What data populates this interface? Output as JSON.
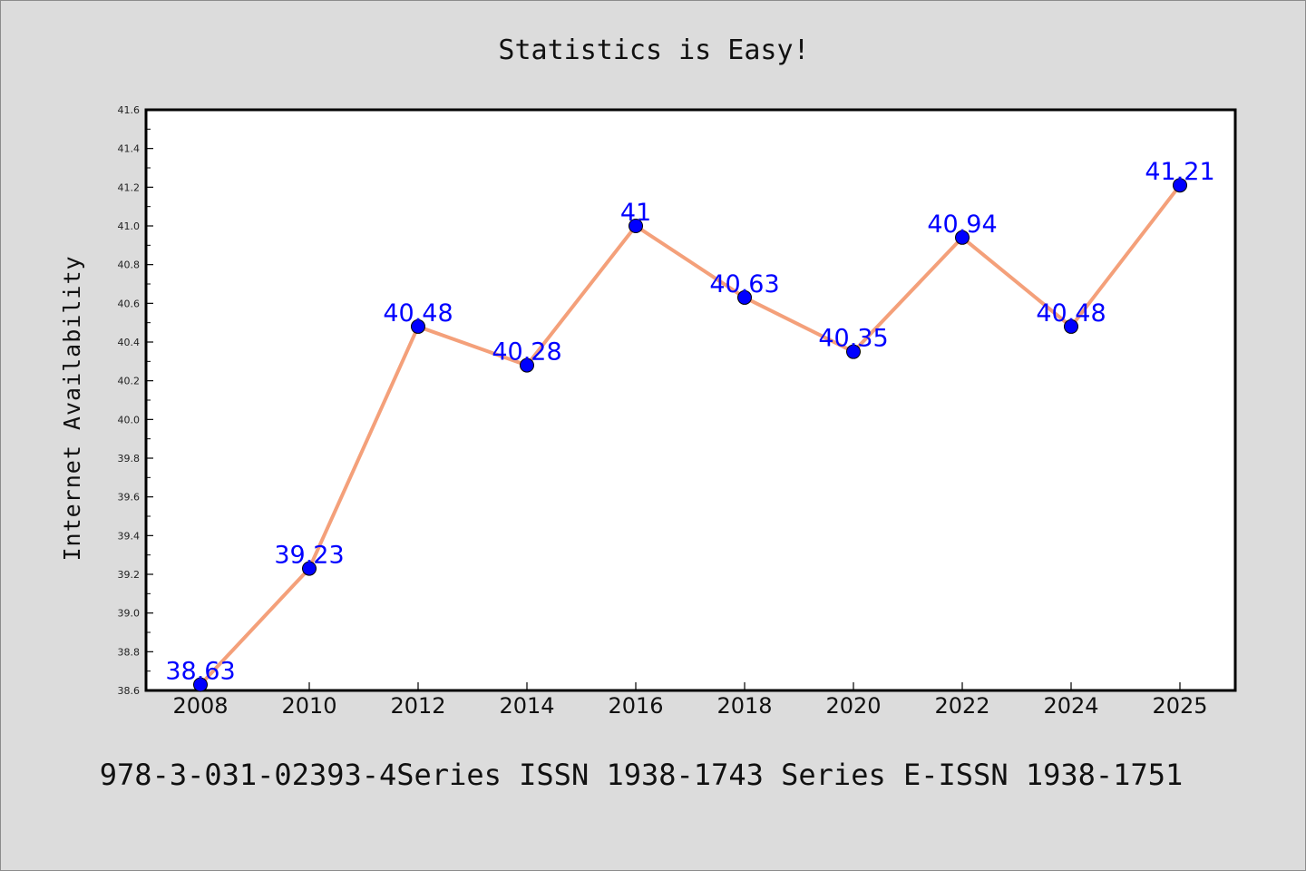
{
  "chart_data": {
    "type": "line",
    "title": "Statistics is Easy!",
    "xlabel": "",
    "ylabel": "Internet Availability",
    "categories": [
      "2008",
      "2010",
      "2012",
      "2014",
      "2016",
      "2018",
      "2020",
      "2022",
      "2024",
      "2025"
    ],
    "series": [
      {
        "values": [
          38.63,
          39.23,
          40.48,
          40.28,
          41,
          40.63,
          40.35,
          40.94,
          40.48,
          41.21
        ],
        "data_labels": [
          "38.63",
          "39.23",
          "40.48",
          "40.28",
          "41",
          "40.63",
          "40.35",
          "40.94",
          "40.48",
          "41.21"
        ]
      }
    ],
    "ylim": [
      38.6,
      41.6
    ],
    "yticks": [
      "38.6",
      "38.8",
      "39.0",
      "39.2",
      "39.4",
      "39.6",
      "39.8",
      "40.0",
      "40.2",
      "40.4",
      "40.6",
      "40.8",
      "41.0",
      "41.2",
      "41.4",
      "41.6"
    ],
    "grid": false,
    "line_color": "#f4a07a",
    "marker_color": "#0000ff",
    "label_color": "#0000ff"
  },
  "footer": {
    "text": "978-3-031-02393-4Series ISSN 1938-1743 Series E-ISSN 1938-1751"
  }
}
